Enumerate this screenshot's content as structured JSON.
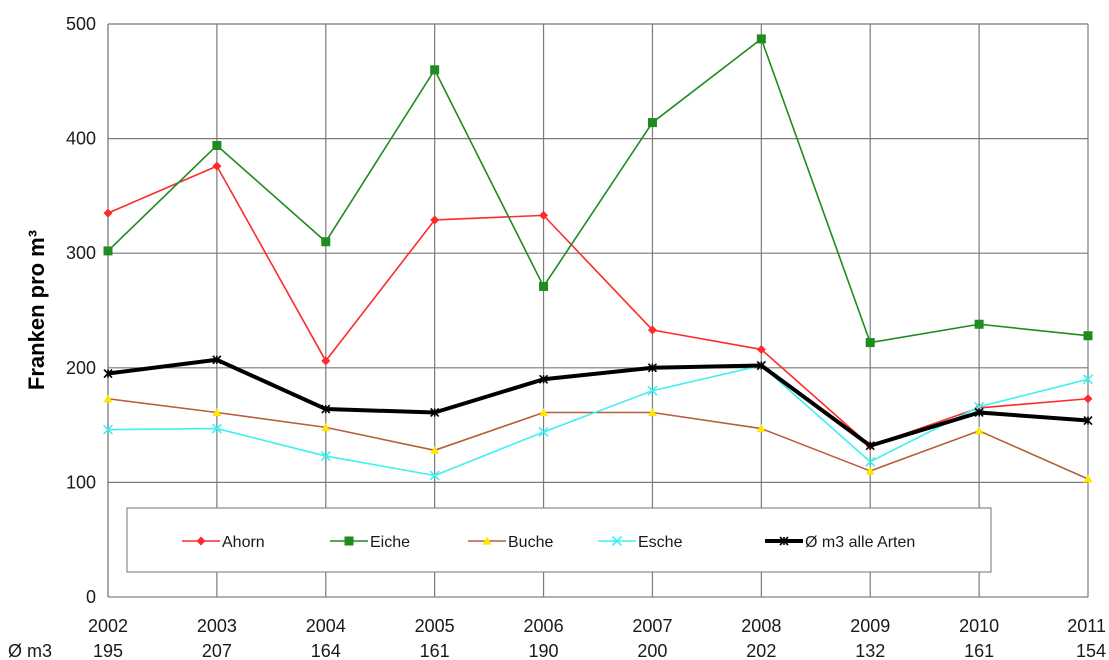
{
  "chart_data": {
    "type": "line",
    "ylabel": "Franken pro m³",
    "ylim": [
      0,
      500
    ],
    "yticks": [
      0,
      100,
      200,
      300,
      400,
      500
    ],
    "grid": true,
    "legend_position": "bottom-inside",
    "x": [
      "2002",
      "2003",
      "2004",
      "2005",
      "2006",
      "2007",
      "2008",
      "2009",
      "2010",
      "2011"
    ],
    "avg_row_label": "Ø m3",
    "avg_row_values": [
      "195",
      "207",
      "164",
      "161",
      "190",
      "200",
      "202",
      "132",
      "161",
      "154"
    ],
    "series": [
      {
        "name": "Ahorn",
        "color": "#ff2a2a",
        "marker": "diamond",
        "values": [
          335,
          376,
          206,
          329,
          333,
          233,
          216,
          132,
          165,
          173
        ]
      },
      {
        "name": "Eiche",
        "color": "#1e8c1e",
        "marker": "square",
        "values": [
          302,
          394,
          310,
          460,
          271,
          414,
          487,
          222,
          238,
          228
        ]
      },
      {
        "name": "Buche",
        "color": "#b5603a",
        "marker": "triangle",
        "values": [
          173,
          161,
          148,
          128,
          161,
          161,
          147,
          110,
          145,
          103
        ]
      },
      {
        "name": "Esche",
        "color": "#3ff0f0",
        "marker": "x",
        "values": [
          146,
          147,
          123,
          106,
          144,
          180,
          202,
          118,
          166,
          190
        ]
      },
      {
        "name": "Ø m3 alle Arten",
        "color": "#000000",
        "marker": "star",
        "bold": true,
        "values": [
          195,
          207,
          164,
          161,
          190,
          200,
          202,
          132,
          161,
          154
        ]
      }
    ]
  }
}
